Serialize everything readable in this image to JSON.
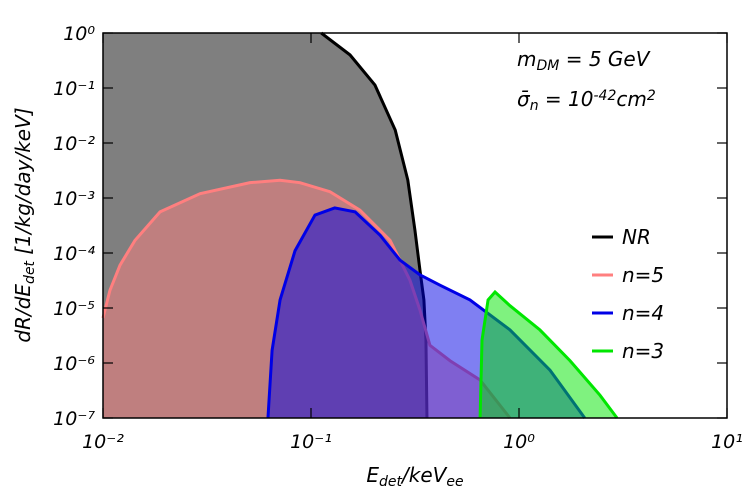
{
  "chart_data": {
    "type": "area",
    "x_label": [
      {
        "text": "E"
      },
      {
        "text": "det",
        "shift": "sub"
      },
      {
        "text": "/keV"
      },
      {
        "text": "ee",
        "shift": "sub"
      }
    ],
    "y_label": [
      {
        "text": "dR/dE"
      },
      {
        "text": "det",
        "shift": "sub"
      },
      {
        "text": " [1/kg/day/keV]"
      }
    ],
    "annotations": [
      [
        {
          "text": "m"
        },
        {
          "text": "DM",
          "shift": "sub"
        },
        {
          "text": " = 5 GeV"
        }
      ],
      [
        {
          "text": "σ̄"
        },
        {
          "text": "n",
          "shift": "sub"
        },
        {
          "text": " = 10"
        },
        {
          "text": "-42",
          "shift": "sup"
        },
        {
          "text": "cm"
        },
        {
          "text": "2",
          "shift": "sup"
        }
      ]
    ],
    "log_x": true,
    "log_y": true,
    "xlim": [
      0.01,
      10
    ],
    "ylim": [
      1e-07,
      1
    ],
    "xticks": [
      {
        "value": 0.01,
        "label": "10⁻²"
      },
      {
        "value": 0.1,
        "label": "10⁻¹"
      },
      {
        "value": 1,
        "label": "10⁰"
      },
      {
        "value": 10,
        "label": "10¹"
      }
    ],
    "yticks": [
      {
        "value": 1e-07,
        "label": "10⁻⁷"
      },
      {
        "value": 1e-06,
        "label": "10⁻⁶"
      },
      {
        "value": 1e-05,
        "label": "10⁻⁵"
      },
      {
        "value": 0.0001,
        "label": "10⁻⁴"
      },
      {
        "value": 0.001,
        "label": "10⁻³"
      },
      {
        "value": 0.01,
        "label": "10⁻²"
      },
      {
        "value": 0.1,
        "label": "10⁻¹"
      },
      {
        "value": 1,
        "label": "10⁰"
      }
    ],
    "legend": "right",
    "series": [
      {
        "name": "NR",
        "color": "#000000",
        "fill_to": "left",
        "x": [
          0.112,
          0.154,
          0.203,
          0.254,
          0.292,
          0.316,
          0.334,
          0.349,
          0.357,
          0.361
        ],
        "values": [
          1,
          0.4,
          0.113,
          0.0172,
          0.00212,
          0.00026,
          4.9e-05,
          1.4e-05,
          2.6e-06,
          1e-07
        ]
      },
      {
        "name": "n=5",
        "color": "#ff7f7f",
        "fill_to": "bottom",
        "x": [
          0.01,
          0.0108,
          0.01207,
          0.01425,
          0.0188,
          0.0293,
          0.0509,
          0.071,
          0.0885,
          0.1234,
          0.172,
          0.24,
          0.299,
          0.334,
          0.373,
          0.466,
          0.65,
          0.905
        ],
        "values": [
          6.6e-06,
          2.1e-05,
          6e-05,
          0.00017,
          0.00056,
          0.0012,
          0.0019,
          0.0021,
          0.0019,
          0.0013,
          0.0006,
          0.00017,
          3.2e-05,
          9.2e-06,
          2.1e-06,
          1.1e-06,
          4.9e-07,
          1e-07
        ]
      },
      {
        "name": "n=4",
        "color": "#0000e6",
        "fill_to": "bottom",
        "x": [
          0.0621,
          0.065,
          0.071,
          0.0838,
          0.1045,
          0.13,
          0.163,
          0.215,
          0.268,
          0.334,
          0.417,
          0.581,
          0.905,
          1.41,
          2.07
        ],
        "values": [
          1e-07,
          1.7e-06,
          1.4e-05,
          0.00011,
          0.00049,
          0.00066,
          0.00056,
          0.00021,
          7.4e-05,
          4e-05,
          2.6e-05,
          1.4e-05,
          4e-06,
          7.4e-07,
          1e-07
        ]
      },
      {
        "name": "n=3",
        "color": "#00e600",
        "fill_to": "bottom",
        "x": [
          0.65,
          0.664,
          0.71,
          0.767,
          0.905,
          1.26,
          1.76,
          2.45,
          2.96
        ],
        "values": [
          1e-07,
          2.6e-06,
          1.4e-05,
          1.95e-05,
          1.1e-05,
          4e-06,
          1.1e-06,
          2.6e-07,
          1e-07
        ]
      }
    ]
  }
}
